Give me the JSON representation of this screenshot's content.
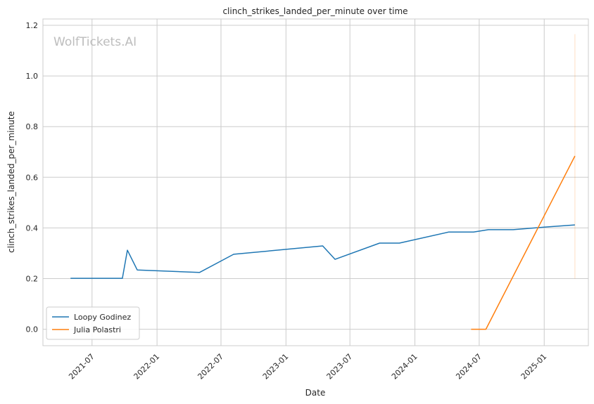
{
  "chart_data": {
    "type": "line",
    "title": "clinch_strikes_landed_per_minute over time",
    "xlabel": "Date",
    "ylabel": "clinch_strikes_landed_per_minute",
    "watermark": "WolfTickets.AI",
    "xlim": [
      "2021-02-12",
      "2025-05-06"
    ],
    "ylim": [
      -0.065,
      1.225
    ],
    "x_ticks": [
      "2021-07",
      "2022-01",
      "2022-07",
      "2023-01",
      "2023-07",
      "2024-01",
      "2024-07",
      "2025-01"
    ],
    "y_ticks": [
      "0.0",
      "0.2",
      "0.4",
      "0.6",
      "0.8",
      "1.0",
      "1.2"
    ],
    "grid": true,
    "legend_position": "lower-left",
    "series": [
      {
        "name": "Loopy Godinez",
        "color": "#1f77b4",
        "points": [
          {
            "x": "2021-05-01",
            "y": 0.201
          },
          {
            "x": "2021-09-25",
            "y": 0.201
          },
          {
            "x": "2021-10-09",
            "y": 0.312
          },
          {
            "x": "2021-11-06",
            "y": 0.234
          },
          {
            "x": "2022-05-01",
            "y": 0.224
          },
          {
            "x": "2022-08-06",
            "y": 0.296
          },
          {
            "x": "2023-04-15",
            "y": 0.329
          },
          {
            "x": "2023-05-20",
            "y": 0.276
          },
          {
            "x": "2023-09-23",
            "y": 0.34
          },
          {
            "x": "2023-11-18",
            "y": 0.34
          },
          {
            "x": "2024-04-06",
            "y": 0.384
          },
          {
            "x": "2024-06-15",
            "y": 0.384
          },
          {
            "x": "2024-07-27",
            "y": 0.393
          },
          {
            "x": "2024-10-05",
            "y": 0.393
          },
          {
            "x": "2025-01-01",
            "y": 0.403
          },
          {
            "x": "2025-03-29",
            "y": 0.412
          }
        ]
      },
      {
        "name": "Julia Polastri",
        "color": "#ff7f0e",
        "points": [
          {
            "x": "2024-06-08",
            "y": 0.0
          },
          {
            "x": "2024-07-20",
            "y": 0.0
          },
          {
            "x": "2025-03-29",
            "y": 0.684
          }
        ],
        "band": {
          "x": "2025-03-29",
          "y_low": 0.2,
          "y_high": 1.165
        }
      }
    ]
  }
}
